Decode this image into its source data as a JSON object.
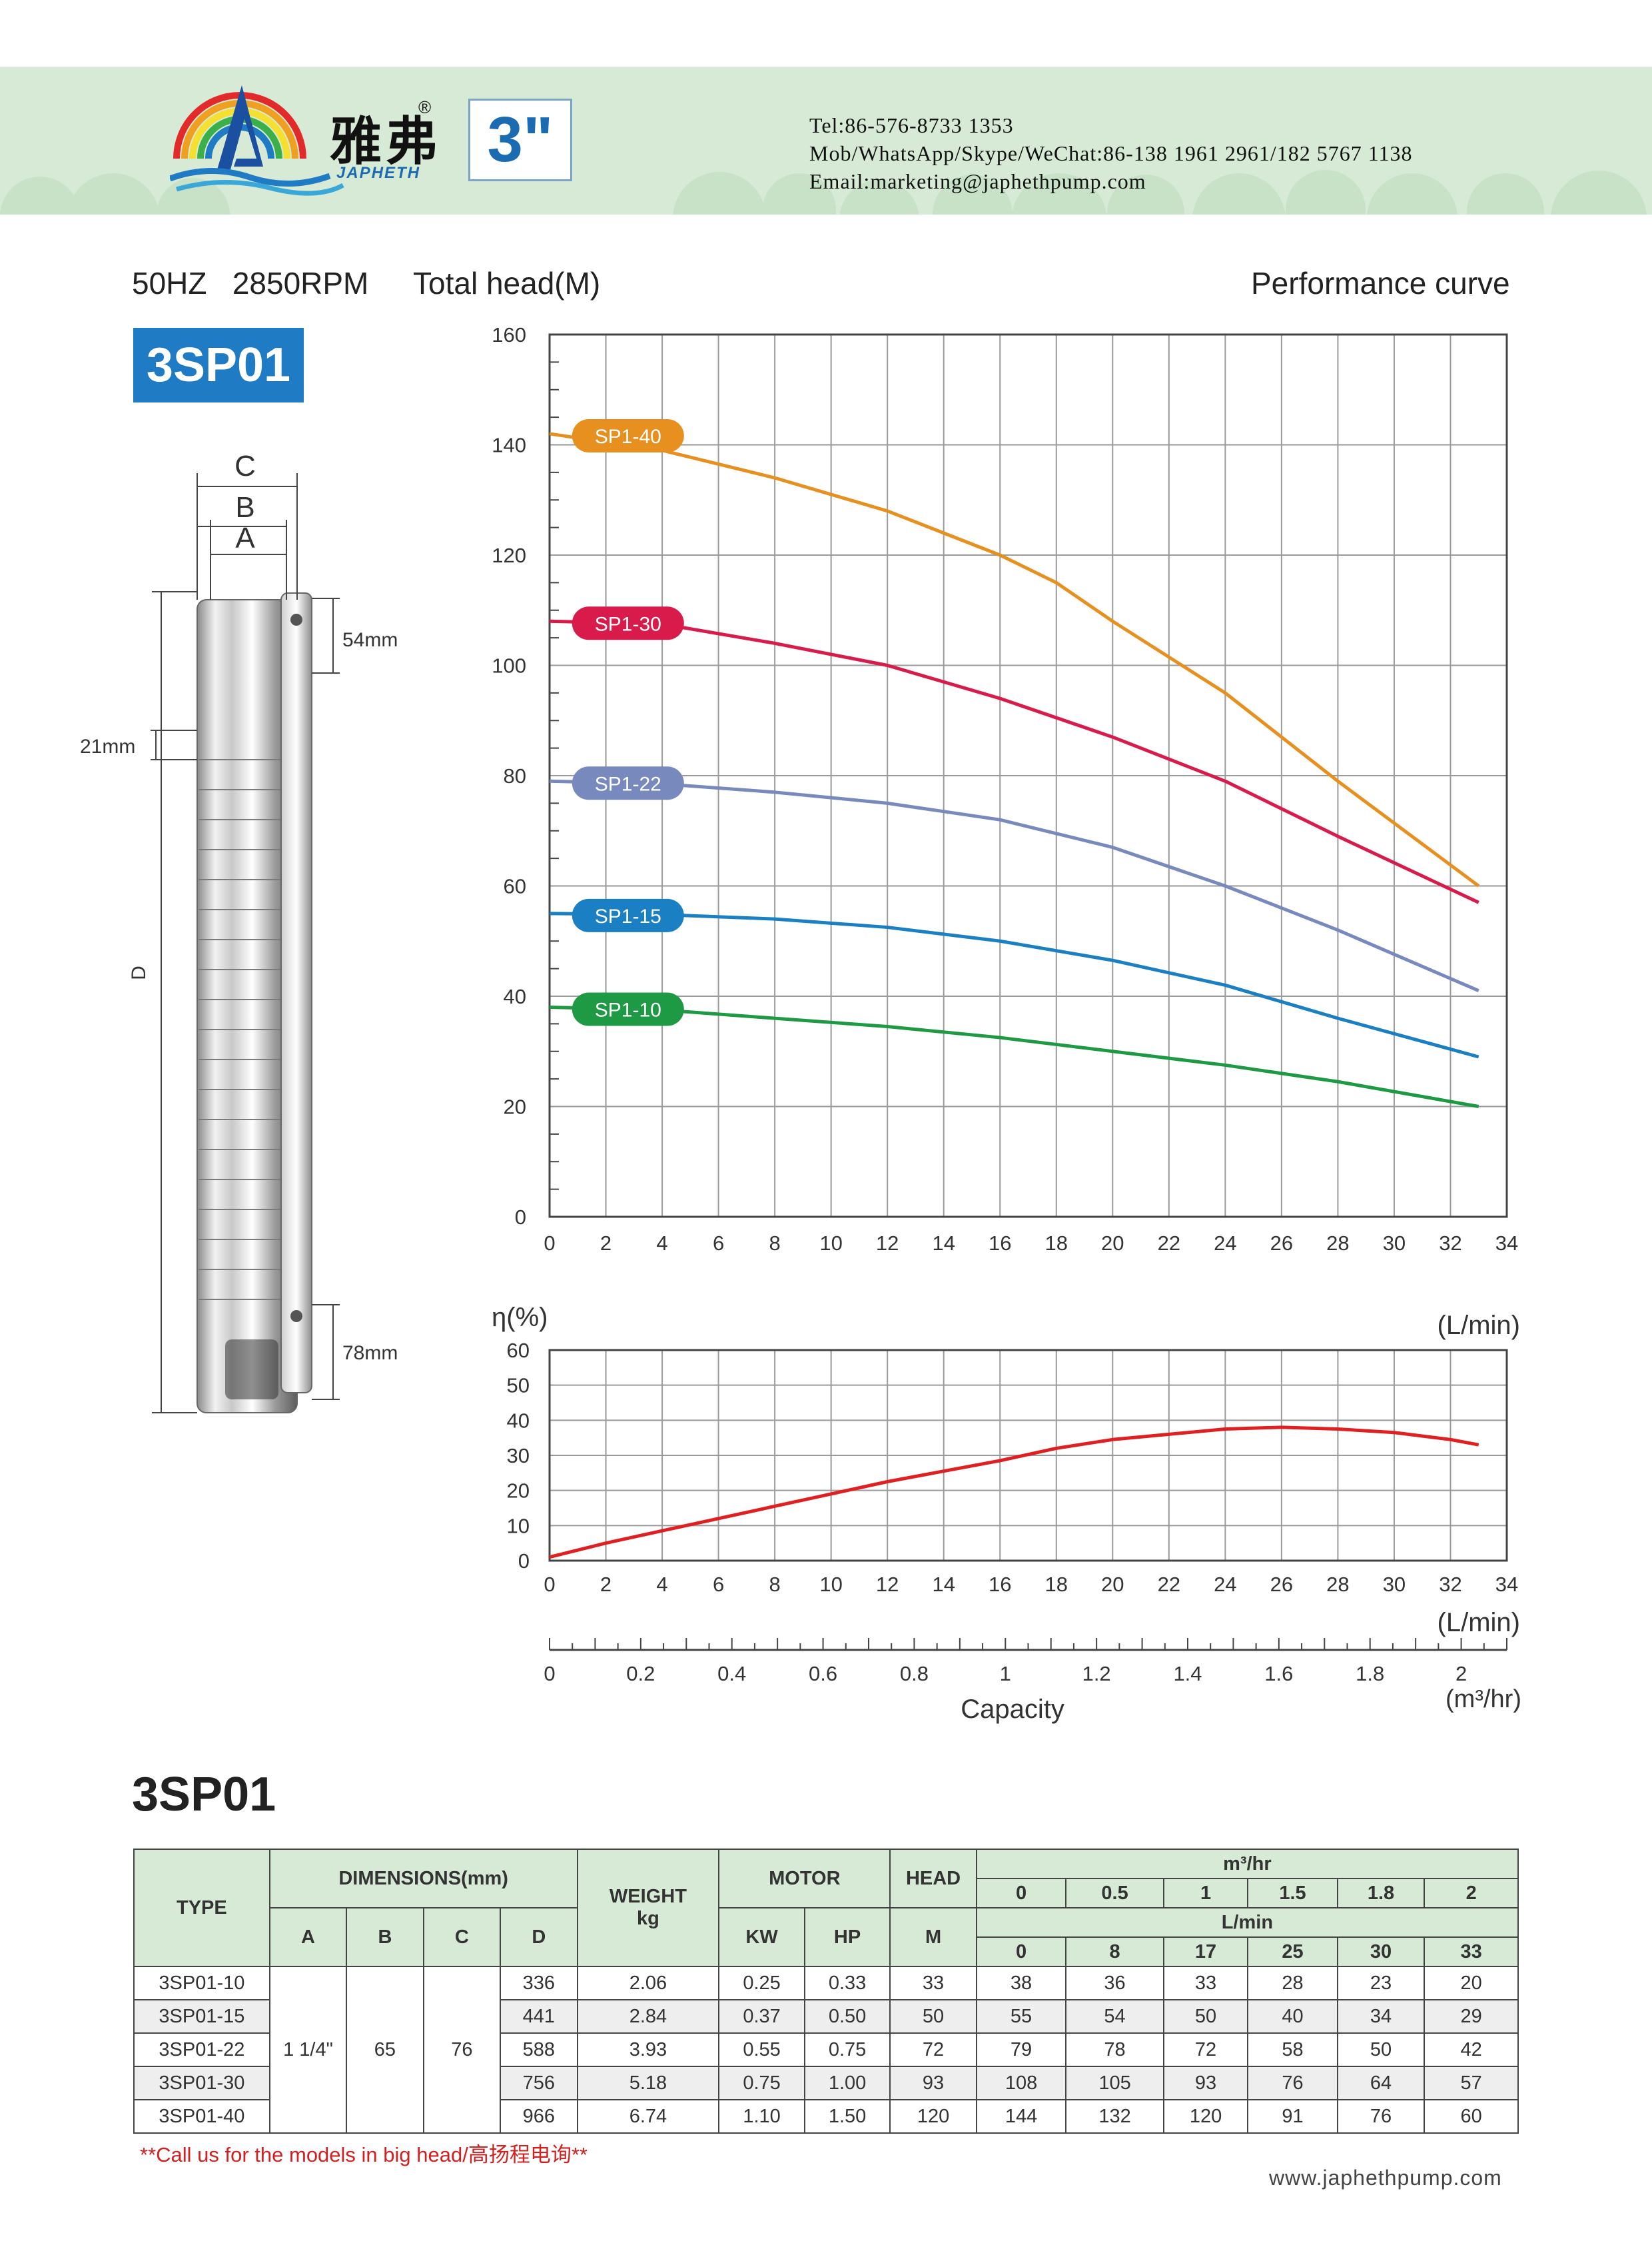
{
  "header": {
    "brand_cn": "雅弗",
    "brand_en": "JAPHETH",
    "registered_mark": "®",
    "size_badge": "3\"",
    "tel": "Tel:86-576-8733 1353",
    "mobile": "Mob/WhatsApp/Skype/WeChat:86-138 1961 2961/182 5767 1138",
    "email": "Email:marketing@japhethpump.com"
  },
  "spec_line": "50HZ   2850RPM",
  "model_badge": "3SP01",
  "head_axis_title": "Total head(M)",
  "performance_title": "Performance curve",
  "drawing": {
    "dim_c": "C",
    "dim_b": "B",
    "dim_a": "A",
    "dim_d": "D",
    "top_length": "54mm",
    "stage_length": "21mm",
    "bottom_length": "78mm"
  },
  "chart_data": [
    {
      "type": "line",
      "title": "Performance curve",
      "ylabel": "Total head(M)",
      "xlabel": "",
      "xlim": [
        0,
        34
      ],
      "ylim": [
        0,
        160
      ],
      "xticks": [
        0,
        2,
        4,
        6,
        8,
        10,
        12,
        14,
        16,
        18,
        20,
        22,
        24,
        26,
        28,
        30,
        32,
        34
      ],
      "yticks": [
        0,
        20,
        40,
        60,
        80,
        100,
        120,
        140,
        160
      ],
      "grid": true,
      "series": [
        {
          "name": "SP1-40",
          "color": "#e8901f",
          "x": [
            0,
            4,
            8,
            12,
            16,
            18,
            20,
            24,
            28,
            33
          ],
          "y": [
            142,
            139,
            134,
            128,
            120,
            115,
            108,
            95,
            79,
            60
          ]
        },
        {
          "name": "SP1-30",
          "color": "#d81b4a",
          "x": [
            0,
            4,
            8,
            12,
            16,
            20,
            24,
            28,
            33
          ],
          "y": [
            108,
            107.5,
            104,
            100,
            94,
            87,
            79,
            69,
            57
          ]
        },
        {
          "name": "SP1-22",
          "color": "#7789bd",
          "x": [
            0,
            4,
            8,
            12,
            16,
            20,
            24,
            28,
            33
          ],
          "y": [
            79,
            78.5,
            77,
            75,
            72,
            67,
            60,
            52,
            41
          ]
        },
        {
          "name": "SP1-15",
          "color": "#1a7fc3",
          "x": [
            0,
            4,
            8,
            12,
            16,
            20,
            24,
            28,
            33
          ],
          "y": [
            55,
            54.8,
            54,
            52.5,
            50,
            46.5,
            42,
            36,
            29
          ]
        },
        {
          "name": "SP1-10",
          "color": "#1e9a45",
          "x": [
            0,
            4,
            8,
            12,
            16,
            20,
            24,
            28,
            33
          ],
          "y": [
            38,
            37.5,
            36,
            34.5,
            32.5,
            30,
            27.5,
            24.5,
            20
          ]
        }
      ]
    },
    {
      "type": "line",
      "title": "",
      "ylabel": "η(%)",
      "xlabel": "(L/min)",
      "xlim": [
        0,
        34
      ],
      "ylim": [
        0,
        60
      ],
      "xticks": [
        0,
        2,
        4,
        6,
        8,
        10,
        12,
        14,
        16,
        18,
        20,
        22,
        24,
        26,
        28,
        30,
        32,
        34
      ],
      "yticks": [
        0,
        10,
        20,
        30,
        40,
        50,
        60
      ],
      "grid": true,
      "series": [
        {
          "color": "#e02020",
          "x": [
            0,
            2,
            4,
            6,
            8,
            10,
            12,
            14,
            16,
            18,
            20,
            22,
            24,
            26,
            28,
            30,
            32,
            33
          ],
          "y": [
            1,
            5,
            8.5,
            12,
            15.5,
            19,
            22.5,
            25.5,
            28.5,
            32,
            34.5,
            36,
            37.5,
            38,
            37.5,
            36.5,
            34.5,
            33
          ]
        }
      ]
    },
    {
      "type": "axis",
      "title": "Capacity",
      "top_label": "(L/min)",
      "unit_label": "(m³/hr)",
      "xlim": [
        0,
        2.1
      ],
      "xticks": [
        "0",
        "0.2",
        "0.4",
        "0.6",
        "0.8",
        "1",
        "1.2",
        "1.4",
        "1.6",
        "1.8",
        "2"
      ]
    }
  ],
  "table_title": "3SP01",
  "table": {
    "type_header": "TYPE",
    "dimensions_header": "DIMENSIONS(mm)",
    "dim_cols": [
      "A",
      "B",
      "C",
      "D"
    ],
    "weight_header_1": "WEIGHT",
    "weight_header_2": "kg",
    "motor_header": "MOTOR",
    "motor_cols": [
      "KW",
      "HP"
    ],
    "head_header": "HEAD",
    "head_unit": "M",
    "flow_m3_header": "m³/hr",
    "flow_m3": [
      "0",
      "0.5",
      "1",
      "1.5",
      "1.8",
      "2"
    ],
    "flow_lmin_header": "L/min",
    "flow_lmin": [
      "0",
      "8",
      "17",
      "25",
      "30",
      "33"
    ],
    "shared_a": "1 1/4\"",
    "shared_b": "65",
    "shared_c": "76",
    "rows": [
      {
        "type": "3SP01-10",
        "d": "336",
        "weight": "2.06",
        "kw": "0.25",
        "hp": "0.33",
        "head": "33",
        "heads": [
          "38",
          "36",
          "33",
          "28",
          "23",
          "20"
        ]
      },
      {
        "type": "3SP01-15",
        "d": "441",
        "weight": "2.84",
        "kw": "0.37",
        "hp": "0.50",
        "head": "50",
        "heads": [
          "55",
          "54",
          "50",
          "40",
          "34",
          "29"
        ]
      },
      {
        "type": "3SP01-22",
        "d": "588",
        "weight": "3.93",
        "kw": "0.55",
        "hp": "0.75",
        "head": "72",
        "heads": [
          "79",
          "78",
          "72",
          "58",
          "50",
          "42"
        ]
      },
      {
        "type": "3SP01-30",
        "d": "756",
        "weight": "5.18",
        "kw": "0.75",
        "hp": "1.00",
        "head": "93",
        "heads": [
          "108",
          "105",
          "93",
          "76",
          "64",
          "57"
        ]
      },
      {
        "type": "3SP01-40",
        "d": "966",
        "weight": "6.74",
        "kw": "1.10",
        "hp": "1.50",
        "head": "120",
        "heads": [
          "144",
          "132",
          "120",
          "91",
          "76",
          "60"
        ]
      }
    ]
  },
  "footnote": "**Call us for the models in big head/高扬程电询**",
  "website": "www.japhethpump.com",
  "colors": {
    "header_bg": "#d6ead6",
    "brand_blue": "#1e7bc4",
    "footnote_red": "#d21f1f"
  }
}
